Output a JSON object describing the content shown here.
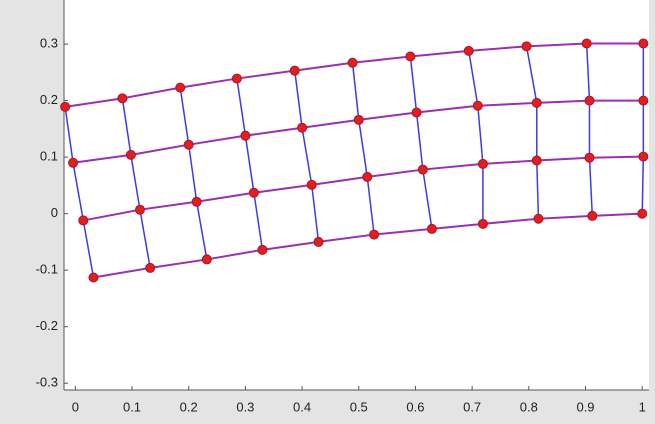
{
  "chart_data": {
    "type": "mesh",
    "xlim": [
      -0.02,
      1.012
    ],
    "ylim": [
      -0.312,
      0.378
    ],
    "xticks": [
      0,
      0.1,
      0.2,
      0.3,
      0.4,
      0.5,
      0.6,
      0.7,
      0.8,
      0.9,
      1
    ],
    "yticks": [
      -0.3,
      -0.2,
      -0.1,
      0,
      0.1,
      0.2,
      0.3
    ],
    "line_color": "#9a2fb0",
    "mesh_color": "#3a3af0",
    "marker_color": "#e0201a",
    "series": [
      {
        "x": [
          -0.018,
          0.083,
          0.185,
          0.285,
          0.387,
          0.489,
          0.591,
          0.694,
          0.796,
          0.902,
          1.002
        ],
        "values": [
          0.189,
          0.204,
          0.223,
          0.239,
          0.253,
          0.267,
          0.278,
          0.288,
          0.296,
          0.301,
          0.301
        ]
      },
      {
        "x": [
          -0.004,
          0.098,
          0.2,
          0.3,
          0.4,
          0.5,
          0.602,
          0.71,
          0.814,
          0.907,
          1.002
        ],
        "values": [
          0.09,
          0.104,
          0.122,
          0.138,
          0.152,
          0.166,
          0.179,
          0.191,
          0.196,
          0.2,
          0.2
        ]
      },
      {
        "x": [
          0.014,
          0.114,
          0.214,
          0.315,
          0.417,
          0.515,
          0.613,
          0.719,
          0.814,
          0.907,
          1.002
        ],
        "values": [
          -0.012,
          0.007,
          0.021,
          0.037,
          0.051,
          0.065,
          0.078,
          0.088,
          0.094,
          0.099,
          0.101
        ]
      },
      {
        "x": [
          0.032,
          0.132,
          0.232,
          0.33,
          0.429,
          0.527,
          0.629,
          0.719,
          0.817,
          0.912,
          1.0
        ],
        "values": [
          -0.113,
          -0.096,
          -0.081,
          -0.064,
          -0.05,
          -0.037,
          -0.027,
          -0.018,
          -0.009,
          -0.004,
          0.0
        ]
      }
    ]
  }
}
